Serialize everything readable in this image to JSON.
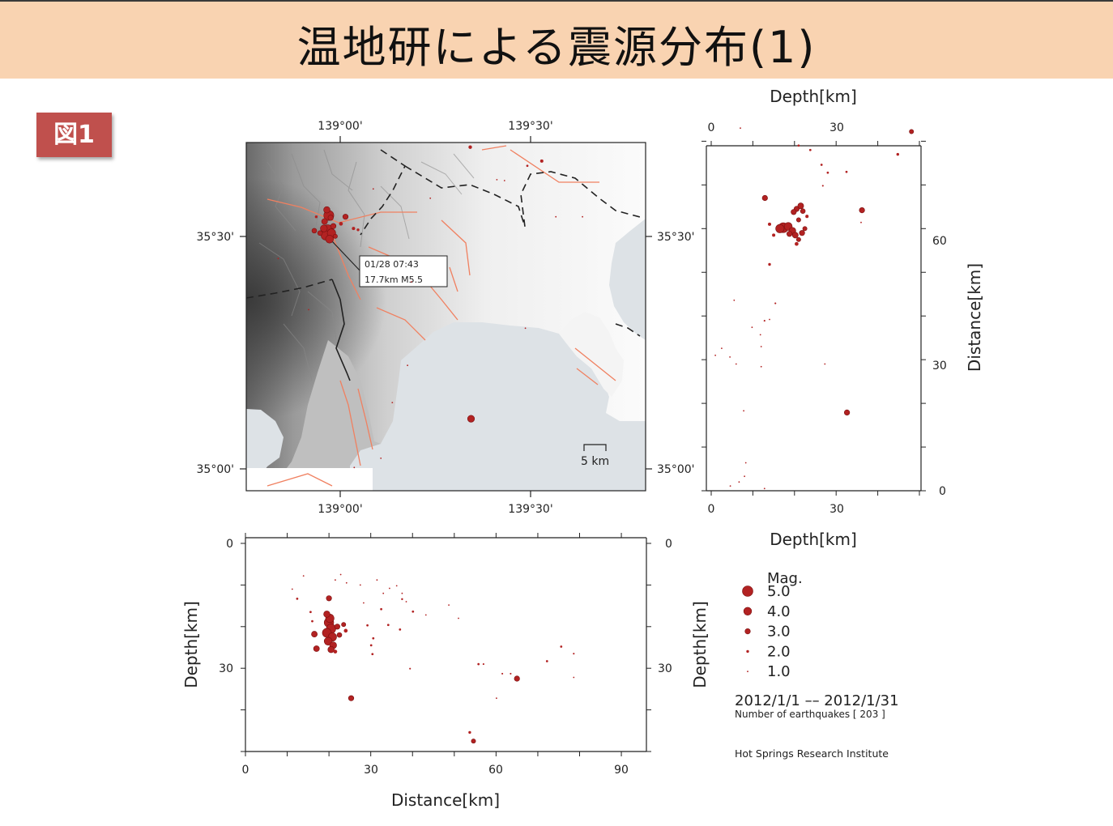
{
  "title": "温地研による震源分布(1)",
  "badge": "図1",
  "colors": {
    "title_bg": "#f9d3b1",
    "badge_bg": "#c0504d",
    "quake": "#b22222",
    "fault": "#f08060",
    "sea": "#dde2e6"
  },
  "chart_data": [
    {
      "type": "scatter",
      "panel": "epicenter map",
      "top_ticks": [
        "139°00'",
        "139°30'"
      ],
      "bottom_ticks": [
        "139°00'",
        "139°30'"
      ],
      "left_ticks": [
        "35°30'",
        "35°00'"
      ],
      "right_ticks": [
        "35°30'",
        "35°00'"
      ],
      "xlim_deg": [
        138.766,
        139.816
      ],
      "ylim_deg": [
        34.95,
        35.7
      ],
      "annotation_lines": [
        "01/28 07:43",
        "17.7km M5.5"
      ],
      "scale_label": "5 km",
      "points": [
        {
          "lon": 138.983,
          "lat": 35.543,
          "mag": 4.8
        },
        {
          "lon": 138.98,
          "lat": 35.51,
          "mag": 5.5
        },
        {
          "lon": 138.975,
          "lat": 35.5,
          "mag": 4.5
        },
        {
          "lon": 138.99,
          "lat": 35.505,
          "mag": 4.2
        },
        {
          "lon": 138.97,
          "lat": 35.515,
          "mag": 3.6
        },
        {
          "lon": 138.985,
          "lat": 35.492,
          "mag": 4.0
        },
        {
          "lon": 138.978,
          "lat": 35.555,
          "mag": 3.4
        },
        {
          "lon": 138.995,
          "lat": 35.52,
          "mag": 3.0
        },
        {
          "lon": 138.972,
          "lat": 35.53,
          "mag": 3.2
        },
        {
          "lon": 138.988,
          "lat": 35.538,
          "mag": 3.0
        },
        {
          "lon": 138.96,
          "lat": 35.505,
          "mag": 2.8
        },
        {
          "lon": 139.0,
          "lat": 35.498,
          "mag": 2.6
        },
        {
          "lon": 138.945,
          "lat": 35.51,
          "mag": 2.8
        },
        {
          "lon": 139.027,
          "lat": 35.54,
          "mag": 3.0
        },
        {
          "lon": 139.015,
          "lat": 35.525,
          "mag": 2.4
        },
        {
          "lon": 139.048,
          "lat": 35.515,
          "mag": 2.2
        },
        {
          "lon": 139.06,
          "lat": 35.512,
          "mag": 2.0
        },
        {
          "lon": 138.95,
          "lat": 35.54,
          "mag": 2.0
        },
        {
          "lon": 139.357,
          "lat": 35.105,
          "mag": 3.6
        },
        {
          "lon": 139.355,
          "lat": 35.69,
          "mag": 2.3
        },
        {
          "lon": 139.543,
          "lat": 35.66,
          "mag": 2.2
        },
        {
          "lon": 139.505,
          "lat": 35.65,
          "mag": 1.8
        },
        {
          "lon": 139.425,
          "lat": 35.62,
          "mag": 1.5
        },
        {
          "lon": 139.445,
          "lat": 35.618,
          "mag": 1.5
        },
        {
          "lon": 139.65,
          "lat": 35.54,
          "mag": 1.4
        },
        {
          "lon": 139.58,
          "lat": 35.54,
          "mag": 1.3
        },
        {
          "lon": 139.19,
          "lat": 35.22,
          "mag": 1.4
        },
        {
          "lon": 138.93,
          "lat": 35.34,
          "mag": 1.5
        },
        {
          "lon": 139.15,
          "lat": 35.14,
          "mag": 1.3
        },
        {
          "lon": 139.2,
          "lat": 35.4,
          "mag": 1.2
        },
        {
          "lon": 139.25,
          "lat": 35.58,
          "mag": 1.2
        },
        {
          "lon": 139.1,
          "lat": 35.6,
          "mag": 1.2
        },
        {
          "lon": 138.85,
          "lat": 35.45,
          "mag": 1.1
        },
        {
          "lon": 139.12,
          "lat": 35.02,
          "mag": 1.2
        },
        {
          "lon": 139.05,
          "lat": 35.0,
          "mag": 1.0
        },
        {
          "lon": 139.5,
          "lat": 35.3,
          "mag": 1.0
        }
      ]
    },
    {
      "type": "scatter",
      "panel": "depth vs distance (right)",
      "xlabel": "Depth[km]",
      "ylabel": "Distance[km]",
      "xlim": [
        0,
        50
      ],
      "ylim": [
        0,
        81
      ],
      "x_ticks": [
        "0",
        "30"
      ],
      "y_ticks": [
        "0",
        "30",
        "60"
      ],
      "points": [
        {
          "depth": 20.5,
          "dist": 64.5,
          "mag": 3.0
        },
        {
          "depth": 21.5,
          "dist": 65.2,
          "mag": 3.2
        },
        {
          "depth": 19.8,
          "dist": 63.8,
          "mag": 3.0
        },
        {
          "depth": 22.0,
          "dist": 64.0,
          "mag": 2.8
        },
        {
          "depth": 21.0,
          "dist": 62.0,
          "mag": 2.6
        },
        {
          "depth": 17.3,
          "dist": 60.2,
          "mag": 4.8
        },
        {
          "depth": 16.5,
          "dist": 60.0,
          "mag": 4.2
        },
        {
          "depth": 18.5,
          "dist": 60.5,
          "mag": 4.0
        },
        {
          "depth": 19.5,
          "dist": 59.5,
          "mag": 3.6
        },
        {
          "depth": 20.2,
          "dist": 58.5,
          "mag": 3.2
        },
        {
          "depth": 18.8,
          "dist": 58.8,
          "mag": 3.0
        },
        {
          "depth": 21.8,
          "dist": 59.0,
          "mag": 3.0
        },
        {
          "depth": 22.5,
          "dist": 60.0,
          "mag": 2.6
        },
        {
          "depth": 21.0,
          "dist": 57.5,
          "mag": 2.6
        },
        {
          "depth": 20.5,
          "dist": 56.5,
          "mag": 2.4
        },
        {
          "depth": 15.0,
          "dist": 58.5,
          "mag": 2.2
        },
        {
          "depth": 14.0,
          "dist": 61.0,
          "mag": 2.2
        },
        {
          "depth": 23.0,
          "dist": 62.8,
          "mag": 2.2
        },
        {
          "depth": 12.9,
          "dist": 67.0,
          "mag": 3.0
        },
        {
          "depth": 36.2,
          "dist": 64.2,
          "mag": 3.0
        },
        {
          "depth": 32.6,
          "dist": 17.9,
          "mag": 3.0
        },
        {
          "depth": 48.1,
          "dist": 82.2,
          "mag": 2.6
        },
        {
          "depth": 44.8,
          "dist": 77.0,
          "mag": 2.0
        },
        {
          "depth": 21.0,
          "dist": 79.0,
          "mag": 1.8
        },
        {
          "depth": 23.8,
          "dist": 78.0,
          "mag": 1.8
        },
        {
          "depth": 26.5,
          "dist": 74.6,
          "mag": 1.8
        },
        {
          "depth": 28.0,
          "dist": 72.8,
          "mag": 1.8
        },
        {
          "depth": 32.5,
          "dist": 73.0,
          "mag": 1.8
        },
        {
          "depth": 26.8,
          "dist": 69.8,
          "mag": 1.6
        },
        {
          "depth": 7.0,
          "dist": 83.0,
          "mag": 1.4
        },
        {
          "depth": 36.0,
          "dist": 61.4,
          "mag": 1.4
        },
        {
          "depth": 14.0,
          "dist": 51.8,
          "mag": 2.0
        },
        {
          "depth": 15.4,
          "dist": 42.9,
          "mag": 1.6
        },
        {
          "depth": 12.8,
          "dist": 38.9,
          "mag": 1.6
        },
        {
          "depth": 14.0,
          "dist": 39.2,
          "mag": 1.5
        },
        {
          "depth": 9.8,
          "dist": 37.4,
          "mag": 1.2
        },
        {
          "depth": 11.8,
          "dist": 35.7,
          "mag": 1.2
        },
        {
          "depth": 12.0,
          "dist": 33.0,
          "mag": 1.4
        },
        {
          "depth": 5.5,
          "dist": 43.6,
          "mag": 1.2
        },
        {
          "depth": 2.5,
          "dist": 32.6,
          "mag": 1.1
        },
        {
          "depth": 4.5,
          "dist": 30.6,
          "mag": 1.1
        },
        {
          "depth": 6.0,
          "dist": 29.0,
          "mag": 1.1
        },
        {
          "depth": 12.0,
          "dist": 28.4,
          "mag": 1.3
        },
        {
          "depth": 27.3,
          "dist": 29.0,
          "mag": 1.3
        },
        {
          "depth": 1.0,
          "dist": 31.0,
          "mag": 1.0
        },
        {
          "depth": 7.8,
          "dist": 18.3,
          "mag": 1.4
        },
        {
          "depth": 8.3,
          "dist": 6.4,
          "mag": 1.3
        },
        {
          "depth": 8.0,
          "dist": 3.3,
          "mag": 1.3
        },
        {
          "depth": 4.6,
          "dist": 1.1,
          "mag": 1.3
        },
        {
          "depth": 12.8,
          "dist": 0.5,
          "mag": 1.2
        },
        {
          "depth": 6.7,
          "dist": 2.0,
          "mag": 1.0
        }
      ]
    },
    {
      "type": "scatter",
      "panel": "distance vs depth (bottom)",
      "xlabel": "Distance[km]",
      "ylabel": "Depth[km]",
      "xlim": [
        0,
        96
      ],
      "ylim": [
        0,
        50
      ],
      "x_ticks": [
        "0",
        "30",
        "60",
        "90"
      ],
      "y_ticks": [
        "0",
        "30"
      ],
      "points": [
        {
          "dist": 20.0,
          "depth": 19.0,
          "mag": 4.6
        },
        {
          "dist": 20.5,
          "depth": 20.5,
          "mag": 4.6
        },
        {
          "dist": 19.5,
          "depth": 21.5,
          "mag": 4.4
        },
        {
          "dist": 20.8,
          "depth": 22.5,
          "mag": 4.2
        },
        {
          "dist": 20.2,
          "depth": 18.0,
          "mag": 4.2
        },
        {
          "dist": 19.8,
          "depth": 23.5,
          "mag": 4.0
        },
        {
          "dist": 21.0,
          "depth": 24.5,
          "mag": 3.6
        },
        {
          "dist": 20.5,
          "depth": 25.5,
          "mag": 3.4
        },
        {
          "dist": 19.5,
          "depth": 17.0,
          "mag": 3.4
        },
        {
          "dist": 20.0,
          "depth": 13.2,
          "mag": 3.0
        },
        {
          "dist": 22.0,
          "depth": 20.0,
          "mag": 3.0
        },
        {
          "dist": 22.5,
          "depth": 22.0,
          "mag": 2.8
        },
        {
          "dist": 23.5,
          "depth": 19.5,
          "mag": 2.6
        },
        {
          "dist": 24.0,
          "depth": 21.0,
          "mag": 2.4
        },
        {
          "dist": 21.5,
          "depth": 26.0,
          "mag": 2.4
        },
        {
          "dist": 16.5,
          "depth": 21.8,
          "mag": 3.2
        },
        {
          "dist": 17.0,
          "depth": 25.3,
          "mag": 3.2
        },
        {
          "dist": 25.3,
          "depth": 37.2,
          "mag": 3.0
        },
        {
          "dist": 65.0,
          "depth": 32.5,
          "mag": 3.0
        },
        {
          "dist": 54.6,
          "depth": 47.5,
          "mag": 2.6
        },
        {
          "dist": 53.7,
          "depth": 45.4,
          "mag": 2.0
        },
        {
          "dist": 12.4,
          "depth": 13.3,
          "mag": 1.8
        },
        {
          "dist": 15.6,
          "depth": 16.5,
          "mag": 1.8
        },
        {
          "dist": 16.0,
          "depth": 18.7,
          "mag": 1.8
        },
        {
          "dist": 32.5,
          "depth": 15.8,
          "mag": 1.8
        },
        {
          "dist": 34.2,
          "depth": 19.6,
          "mag": 1.8
        },
        {
          "dist": 37.0,
          "depth": 20.7,
          "mag": 1.8
        },
        {
          "dist": 40.1,
          "depth": 16.4,
          "mag": 1.8
        },
        {
          "dist": 37.5,
          "depth": 13.4,
          "mag": 1.7
        },
        {
          "dist": 43.2,
          "depth": 17.2,
          "mag": 1.4
        },
        {
          "dist": 30.1,
          "depth": 24.5,
          "mag": 1.8
        },
        {
          "dist": 30.6,
          "depth": 22.8,
          "mag": 1.8
        },
        {
          "dist": 29.2,
          "depth": 19.7,
          "mag": 1.8
        },
        {
          "dist": 30.4,
          "depth": 26.6,
          "mag": 1.8
        },
        {
          "dist": 39.4,
          "depth": 30.1,
          "mag": 1.6
        },
        {
          "dist": 55.8,
          "depth": 29.0,
          "mag": 1.8
        },
        {
          "dist": 57.0,
          "depth": 29.0,
          "mag": 1.6
        },
        {
          "dist": 61.5,
          "depth": 31.3,
          "mag": 1.6
        },
        {
          "dist": 63.5,
          "depth": 31.3,
          "mag": 1.6
        },
        {
          "dist": 60.1,
          "depth": 37.2,
          "mag": 1.4
        },
        {
          "dist": 72.2,
          "depth": 28.3,
          "mag": 1.8
        },
        {
          "dist": 75.6,
          "depth": 24.8,
          "mag": 1.8
        },
        {
          "dist": 78.6,
          "depth": 26.5,
          "mag": 1.6
        },
        {
          "dist": 78.6,
          "depth": 32.2,
          "mag": 1.4
        },
        {
          "dist": 22.8,
          "depth": 7.5,
          "mag": 1.2
        },
        {
          "dist": 24.2,
          "depth": 9.5,
          "mag": 1.0
        },
        {
          "dist": 21.5,
          "depth": 8.8,
          "mag": 1.0
        },
        {
          "dist": 11.2,
          "depth": 11.0,
          "mag": 1.0
        },
        {
          "dist": 13.9,
          "depth": 7.8,
          "mag": 1.0
        },
        {
          "dist": 27.5,
          "depth": 10.0,
          "mag": 1.2
        },
        {
          "dist": 28.3,
          "depth": 14.3,
          "mag": 1.2
        },
        {
          "dist": 36.2,
          "depth": 10.2,
          "mag": 1.3
        },
        {
          "dist": 37.5,
          "depth": 12.0,
          "mag": 1.3
        },
        {
          "dist": 33.0,
          "depth": 12.0,
          "mag": 1.3
        },
        {
          "dist": 38.5,
          "depth": 14.0,
          "mag": 1.2
        },
        {
          "dist": 48.7,
          "depth": 14.8,
          "mag": 1.2
        },
        {
          "dist": 51.0,
          "depth": 18.0,
          "mag": 1.2
        },
        {
          "dist": 31.5,
          "depth": 8.8,
          "mag": 1.1
        },
        {
          "dist": 34.5,
          "depth": 10.8,
          "mag": 1.1
        }
      ]
    }
  ],
  "legend": {
    "title": "Mag.",
    "items": [
      {
        "label": "5.0",
        "mag": 5.0
      },
      {
        "label": "4.0",
        "mag": 4.0
      },
      {
        "label": "3.0",
        "mag": 3.0
      },
      {
        "label": "2.0",
        "mag": 2.0
      },
      {
        "label": "1.0",
        "mag": 1.0
      }
    ]
  },
  "period": "2012/1/1 –– 2012/1/31",
  "count_label": "Number of earthquakes [ 203 ]",
  "institute": "Hot Springs Research Institute"
}
